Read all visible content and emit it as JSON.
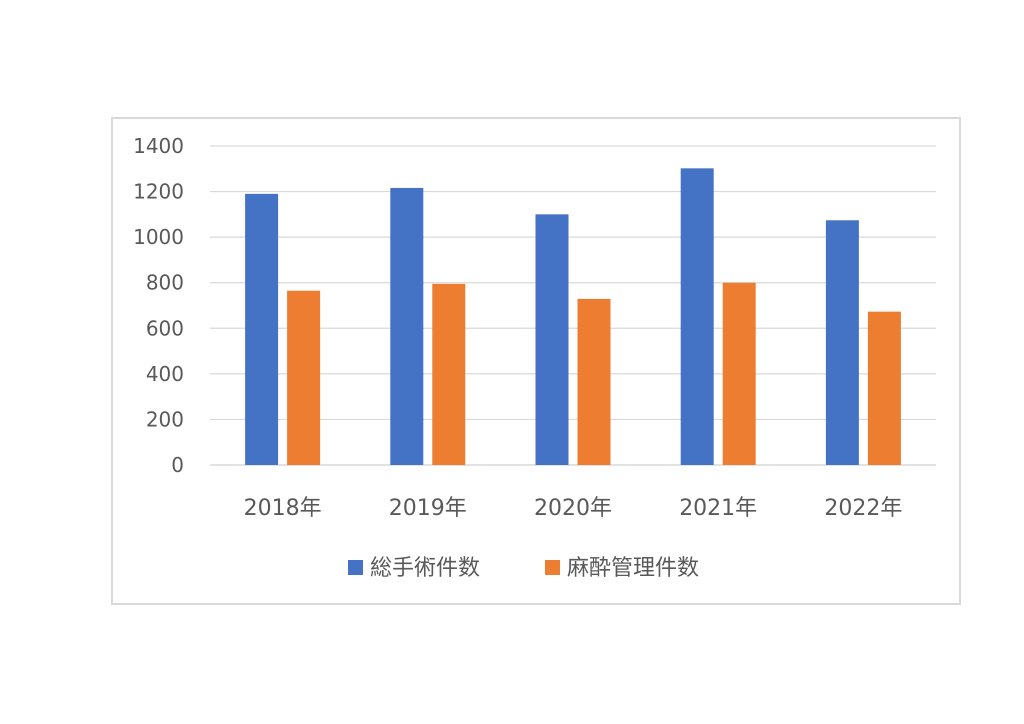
{
  "chart_data": {
    "type": "bar",
    "categories": [
      "2018年",
      "2019年",
      "2020年",
      "2021年",
      "2022年"
    ],
    "series": [
      {
        "name": "総手術件数",
        "values": [
          1190,
          1216,
          1100,
          1302,
          1074
        ],
        "color": "#4472c4"
      },
      {
        "name": "麻酔管理件数",
        "values": [
          765,
          795,
          729,
          800,
          673
        ],
        "color": "#ed7d31"
      }
    ],
    "y_ticks": [
      "0",
      "200",
      "400",
      "600",
      "800",
      "1000",
      "1200",
      "1400"
    ],
    "ylim": [
      0,
      1400
    ],
    "grid": true,
    "legend_position": "bottom",
    "gridline_color": "#d9d9d9",
    "text_color": "#595959"
  }
}
